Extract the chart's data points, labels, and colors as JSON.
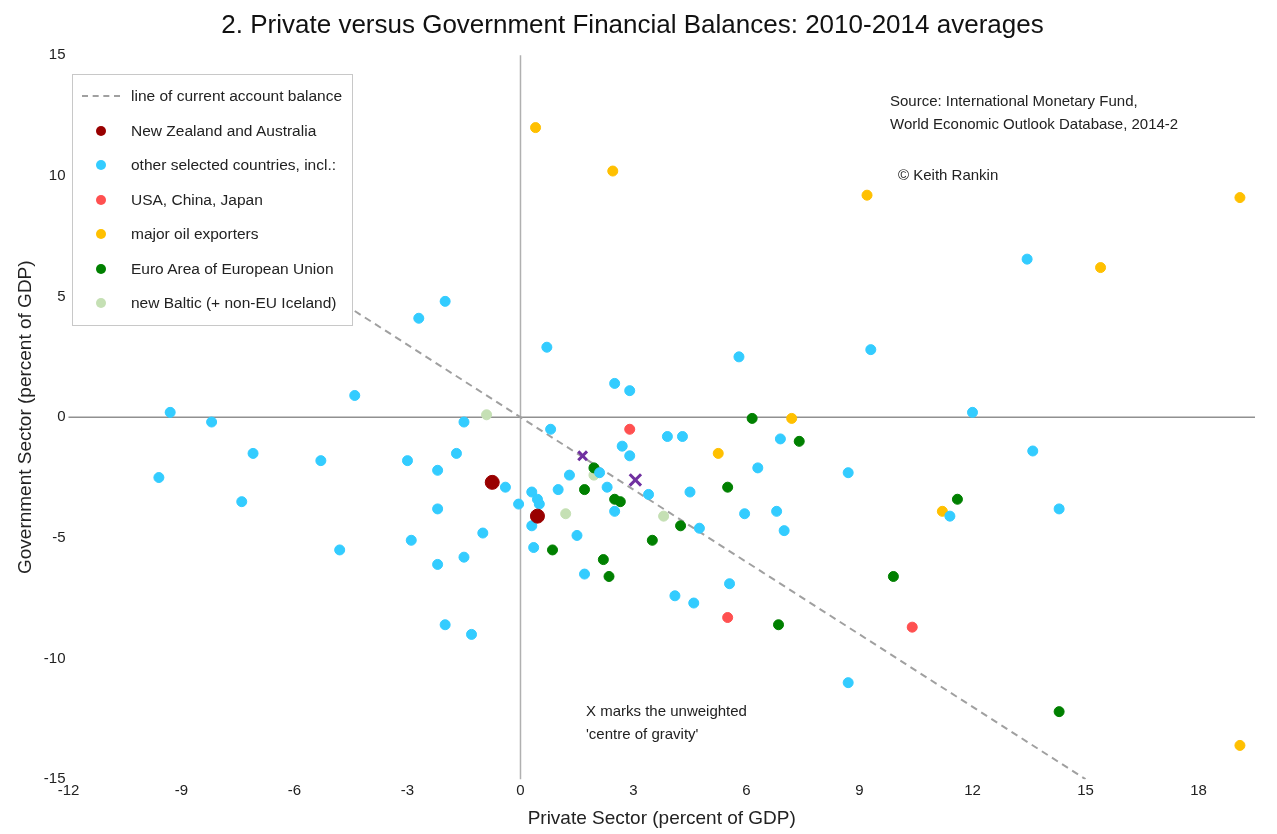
{
  "chart_data": {
    "type": "scatter",
    "title": "2. Private versus Government Financial Balances: 2010-2014 averages",
    "xlabel": "Private Sector (percent of GDP)",
    "ylabel": "Government Sector (percent of GDP)",
    "xlim": [
      -12,
      19.5
    ],
    "ylim": [
      -15,
      15
    ],
    "xticks": [
      -12,
      -9,
      -6,
      -3,
      0,
      3,
      6,
      9,
      12,
      15,
      18
    ],
    "yticks": [
      -15,
      -10,
      -5,
      0,
      5,
      10,
      15
    ],
    "grid": false,
    "legend": "top left",
    "ref_lines": [
      {
        "axis": "x",
        "value": 0,
        "color": "#b0b0b0"
      },
      {
        "axis": "y",
        "value": 0,
        "color": "#909090"
      }
    ],
    "series": [
      {
        "name": "line of current account balance",
        "type": "line",
        "color": "#a0a0a0",
        "line_style": "dashed",
        "marker": "none",
        "x": [
          -4.4,
          15
        ],
        "values": [
          4.4,
          -15
        ]
      },
      {
        "name": "New Zealand and Australia",
        "color": "#990000",
        "marker": "circle",
        "x": [
          -0.75,
          0.45
        ],
        "values": [
          -2.7,
          -4.1
        ]
      },
      {
        "name": "other selected countries, incl.:",
        "color": "#33ccff",
        "marker": "circle",
        "x": [
          -9.3,
          -8.2,
          -7.1,
          -9.6,
          -7.4,
          -5.3,
          -4.4,
          -4.8,
          -3.0,
          -2.7,
          -2.0,
          -2.2,
          -1.7,
          -1.5,
          -2.2,
          -2.9,
          -2.2,
          -1.5,
          -2.0,
          -1.3,
          -1.0,
          -0.4,
          -0.05,
          0.7,
          0.8,
          0.3,
          0.45,
          0.5,
          0.3,
          0.35,
          1.0,
          1.3,
          1.5,
          1.7,
          2.1,
          2.3,
          2.5,
          2.9,
          2.5,
          2.7,
          2.9,
          3.4,
          3.9,
          4.3,
          4.5,
          4.75,
          4.1,
          4.6,
          5.8,
          9.3,
          12.0,
          6.9,
          6.3,
          8.7,
          13.6,
          5.95,
          6.8,
          7.0,
          11.4,
          14.3,
          5.55,
          8.7,
          13.45
        ],
        "values": [
          0.2,
          -0.2,
          -1.5,
          -2.5,
          -3.5,
          -1.8,
          0.9,
          -5.5,
          -1.8,
          4.1,
          4.8,
          -2.2,
          -1.5,
          -0.2,
          -3.8,
          -5.1,
          -6.1,
          -5.8,
          -8.6,
          -9.0,
          -4.8,
          -2.9,
          -3.6,
          2.9,
          -0.5,
          -3.1,
          -3.4,
          -3.6,
          -4.5,
          -5.4,
          -3.0,
          -2.4,
          -4.9,
          -6.5,
          -2.3,
          -2.9,
          1.4,
          1.1,
          -3.9,
          -1.2,
          -1.6,
          -3.2,
          -0.8,
          -0.8,
          -3.1,
          -4.6,
          -7.4,
          -7.7,
          2.5,
          2.8,
          0.2,
          -0.9,
          -2.1,
          -2.3,
          -1.4,
          -4.0,
          -3.9,
          -4.7,
          -4.1,
          -3.8,
          -6.9,
          -11.0,
          6.55
        ]
      },
      {
        "name": "USA, China, Japan",
        "color": "#ff5050",
        "marker": "circle",
        "x": [
          2.9,
          5.5,
          10.4
        ],
        "values": [
          -0.5,
          -8.3,
          -8.7
        ]
      },
      {
        "name": "major oil exporters",
        "color": "#ffc000",
        "marker": "circle",
        "x": [
          0.4,
          2.45,
          9.2,
          15.4,
          19.1,
          19.1,
          7.2,
          5.25,
          11.2
        ],
        "values": [
          12.0,
          10.2,
          9.2,
          6.2,
          9.1,
          -13.6,
          -0.05,
          -1.5,
          -3.9
        ]
      },
      {
        "name": "Euro Area of European Union",
        "color": "#008000",
        "marker": "circle",
        "x": [
          6.15,
          7.4,
          5.5,
          1.95,
          1.7,
          2.5,
          2.65,
          3.5,
          4.25,
          0.85,
          2.2,
          2.35,
          9.9,
          11.6,
          6.85,
          14.3
        ],
        "values": [
          -0.05,
          -1.0,
          -2.9,
          -2.1,
          -3.0,
          -3.4,
          -3.5,
          -5.1,
          -4.5,
          -5.5,
          -5.9,
          -6.6,
          -6.6,
          -3.4,
          -8.6,
          -12.2
        ]
      },
      {
        "name": "new Baltic (+ non-EU Iceland)",
        "color": "#c5e0b4",
        "marker": "circle",
        "x": [
          -0.9,
          1.95,
          1.2,
          3.8
        ],
        "values": [
          0.1,
          -2.4,
          -4.0,
          -4.1
        ]
      },
      {
        "color": "#7030a0",
        "marker": "cross",
        "x": [
          1.65,
          3.05
        ],
        "values": [
          -1.6,
          -2.6
        ],
        "sizes": [
          0.6,
          1
        ]
      }
    ],
    "annotations": [
      "Source: International Monetary Fund,\nWorld Economic Outlook Database, 2014-2",
      "© Keith Rankin",
      "X marks the unweighted\n'centre of gravity'"
    ]
  }
}
